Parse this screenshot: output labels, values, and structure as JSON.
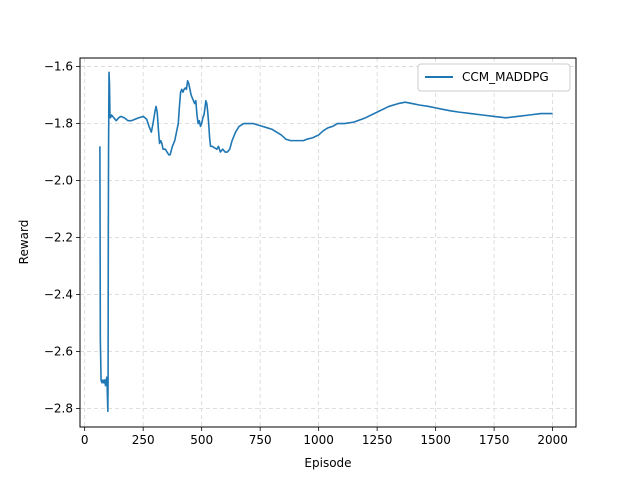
{
  "chart_data": {
    "type": "line",
    "xlabel": "Episode",
    "ylabel": "Reward",
    "xlim": [
      -20,
      2100
    ],
    "ylim": [
      -2.865,
      -1.57
    ],
    "xticks": [
      0,
      250,
      500,
      750,
      1000,
      1250,
      1500,
      1750,
      2000
    ],
    "yticks": [
      -2.8,
      -2.6,
      -2.4,
      -2.2,
      -2.0,
      -1.8,
      -1.6
    ],
    "ytick_labels": [
      "−2.8",
      "−2.6",
      "−2.4",
      "−2.2",
      "−2.0",
      "−1.8",
      "−1.6"
    ],
    "grid": true,
    "legend_position": "top-right",
    "series": [
      {
        "name": "CCM_MADDPG",
        "color": "#1f77b4",
        "points": [
          [
            65,
            -1.88
          ],
          [
            67,
            -2.56
          ],
          [
            70,
            -2.7
          ],
          [
            74,
            -2.71
          ],
          [
            78,
            -2.7
          ],
          [
            82,
            -2.71
          ],
          [
            86,
            -2.7
          ],
          [
            89,
            -2.72
          ],
          [
            92,
            -2.7
          ],
          [
            95,
            -2.69
          ],
          [
            97,
            -2.75
          ],
          [
            99,
            -2.81
          ],
          [
            100,
            -2.7
          ],
          [
            101,
            -2.2
          ],
          [
            102,
            -1.9
          ],
          [
            104,
            -1.62
          ],
          [
            106,
            -1.66
          ],
          [
            108,
            -1.77
          ],
          [
            110,
            -1.78
          ],
          [
            115,
            -1.77
          ],
          [
            125,
            -1.78
          ],
          [
            135,
            -1.79
          ],
          [
            145,
            -1.78
          ],
          [
            155,
            -1.775
          ],
          [
            170,
            -1.78
          ],
          [
            185,
            -1.79
          ],
          [
            200,
            -1.79
          ],
          [
            215,
            -1.785
          ],
          [
            230,
            -1.78
          ],
          [
            250,
            -1.775
          ],
          [
            265,
            -1.785
          ],
          [
            275,
            -1.81
          ],
          [
            285,
            -1.83
          ],
          [
            292,
            -1.8
          ],
          [
            300,
            -1.76
          ],
          [
            305,
            -1.74
          ],
          [
            310,
            -1.76
          ],
          [
            315,
            -1.82
          ],
          [
            320,
            -1.87
          ],
          [
            325,
            -1.86
          ],
          [
            330,
            -1.87
          ],
          [
            335,
            -1.89
          ],
          [
            345,
            -1.89
          ],
          [
            352,
            -1.9
          ],
          [
            360,
            -1.91
          ],
          [
            365,
            -1.91
          ],
          [
            375,
            -1.88
          ],
          [
            385,
            -1.86
          ],
          [
            395,
            -1.82
          ],
          [
            400,
            -1.8
          ],
          [
            405,
            -1.74
          ],
          [
            410,
            -1.69
          ],
          [
            415,
            -1.68
          ],
          [
            420,
            -1.69
          ],
          [
            425,
            -1.68
          ],
          [
            430,
            -1.675
          ],
          [
            435,
            -1.68
          ],
          [
            440,
            -1.65
          ],
          [
            445,
            -1.66
          ],
          [
            450,
            -1.68
          ],
          [
            455,
            -1.7
          ],
          [
            460,
            -1.71
          ],
          [
            465,
            -1.72
          ],
          [
            470,
            -1.73
          ],
          [
            475,
            -1.72
          ],
          [
            480,
            -1.77
          ],
          [
            485,
            -1.8
          ],
          [
            490,
            -1.79
          ],
          [
            495,
            -1.81
          ],
          [
            500,
            -1.8
          ],
          [
            505,
            -1.78
          ],
          [
            510,
            -1.77
          ],
          [
            515,
            -1.74
          ],
          [
            518,
            -1.72
          ],
          [
            522,
            -1.73
          ],
          [
            526,
            -1.76
          ],
          [
            530,
            -1.8
          ],
          [
            534,
            -1.85
          ],
          [
            538,
            -1.88
          ],
          [
            545,
            -1.88
          ],
          [
            555,
            -1.885
          ],
          [
            565,
            -1.89
          ],
          [
            572,
            -1.88
          ],
          [
            580,
            -1.9
          ],
          [
            590,
            -1.89
          ],
          [
            600,
            -1.9
          ],
          [
            610,
            -1.9
          ],
          [
            620,
            -1.89
          ],
          [
            630,
            -1.86
          ],
          [
            645,
            -1.83
          ],
          [
            660,
            -1.81
          ],
          [
            680,
            -1.8
          ],
          [
            700,
            -1.8
          ],
          [
            720,
            -1.8
          ],
          [
            740,
            -1.805
          ],
          [
            760,
            -1.81
          ],
          [
            780,
            -1.815
          ],
          [
            800,
            -1.82
          ],
          [
            820,
            -1.83
          ],
          [
            840,
            -1.84
          ],
          [
            860,
            -1.855
          ],
          [
            880,
            -1.86
          ],
          [
            900,
            -1.86
          ],
          [
            920,
            -1.86
          ],
          [
            935,
            -1.86
          ],
          [
            950,
            -1.855
          ],
          [
            975,
            -1.85
          ],
          [
            1000,
            -1.84
          ],
          [
            1020,
            -1.825
          ],
          [
            1040,
            -1.815
          ],
          [
            1060,
            -1.81
          ],
          [
            1080,
            -1.8
          ],
          [
            1110,
            -1.8
          ],
          [
            1150,
            -1.795
          ],
          [
            1200,
            -1.78
          ],
          [
            1250,
            -1.76
          ],
          [
            1300,
            -1.74
          ],
          [
            1340,
            -1.73
          ],
          [
            1370,
            -1.725
          ],
          [
            1400,
            -1.73
          ],
          [
            1430,
            -1.735
          ],
          [
            1470,
            -1.74
          ],
          [
            1500,
            -1.745
          ],
          [
            1530,
            -1.75
          ],
          [
            1560,
            -1.755
          ],
          [
            1600,
            -1.76
          ],
          [
            1650,
            -1.765
          ],
          [
            1700,
            -1.77
          ],
          [
            1750,
            -1.775
          ],
          [
            1800,
            -1.78
          ],
          [
            1850,
            -1.775
          ],
          [
            1900,
            -1.77
          ],
          [
            1950,
            -1.765
          ],
          [
            2000,
            -1.765
          ]
        ]
      }
    ]
  }
}
